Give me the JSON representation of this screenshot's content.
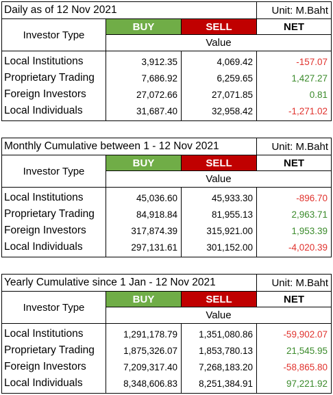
{
  "tables": [
    {
      "title": "Daily as of 12 Nov 2021",
      "unit": "Unit: M.Baht",
      "investor_type_label": "Investor Type",
      "buy_label": "BUY",
      "sell_label": "SELL",
      "net_label": "NET",
      "value_label": "Value",
      "rows": [
        {
          "label": "Local Institutions",
          "buy": "3,912.35",
          "sell": "4,069.42",
          "net": "-157.07",
          "net_sign": "neg"
        },
        {
          "label": "Proprietary Trading",
          "buy": "7,686.92",
          "sell": "6,259.65",
          "net": "1,427.27",
          "net_sign": "pos"
        },
        {
          "label": "Foreign Investors",
          "buy": "27,072.66",
          "sell": "27,071.85",
          "net": "0.81",
          "net_sign": "pos"
        },
        {
          "label": "Local Individuals",
          "buy": "31,687.40",
          "sell": "32,958.42",
          "net": "-1,271.02",
          "net_sign": "neg"
        }
      ]
    },
    {
      "title": "Monthly Cumulative between 1 - 12 Nov 2021",
      "unit": "Unit: M.Baht",
      "investor_type_label": "Investor Type",
      "buy_label": "BUY",
      "sell_label": "SELL",
      "net_label": "NET",
      "value_label": "Value",
      "rows": [
        {
          "label": "Local Institutions",
          "buy": "45,036.60",
          "sell": "45,933.30",
          "net": "-896.70",
          "net_sign": "neg"
        },
        {
          "label": "Proprietary Trading",
          "buy": "84,918.84",
          "sell": "81,955.13",
          "net": "2,963.71",
          "net_sign": "pos"
        },
        {
          "label": "Foreign Investors",
          "buy": "317,874.39",
          "sell": "315,921.00",
          "net": "1,953.39",
          "net_sign": "pos"
        },
        {
          "label": "Local Individuals",
          "buy": "297,131.61",
          "sell": "301,152.00",
          "net": "-4,020.39",
          "net_sign": "neg"
        }
      ]
    },
    {
      "title": "Yearly Cumulative since 1 Jan - 12 Nov 2021",
      "unit": "Unit: M.Baht",
      "investor_type_label": "Investor Type",
      "buy_label": "BUY",
      "sell_label": "SELL",
      "net_label": "NET",
      "value_label": "Value",
      "rows": [
        {
          "label": "Local Institutions",
          "buy": "1,291,178.79",
          "sell": "1,351,080.86",
          "net": "-59,902.07",
          "net_sign": "neg"
        },
        {
          "label": "Proprietary Trading",
          "buy": "1,875,326.07",
          "sell": "1,853,780.13",
          "net": "21,545.95",
          "net_sign": "pos"
        },
        {
          "label": "Foreign Investors",
          "buy": "7,209,317.40",
          "sell": "7,268,183.20",
          "net": "-58,865.80",
          "net_sign": "neg"
        },
        {
          "label": "Local Individuals",
          "buy": "8,348,606.83",
          "sell": "8,251,384.91",
          "net": "97,221.92",
          "net_sign": "pos"
        }
      ]
    }
  ],
  "colors": {
    "buy_bg": "#70ad47",
    "sell_bg": "#c00000",
    "negative_text": "#e0312c",
    "positive_text": "#3a8a2a"
  }
}
